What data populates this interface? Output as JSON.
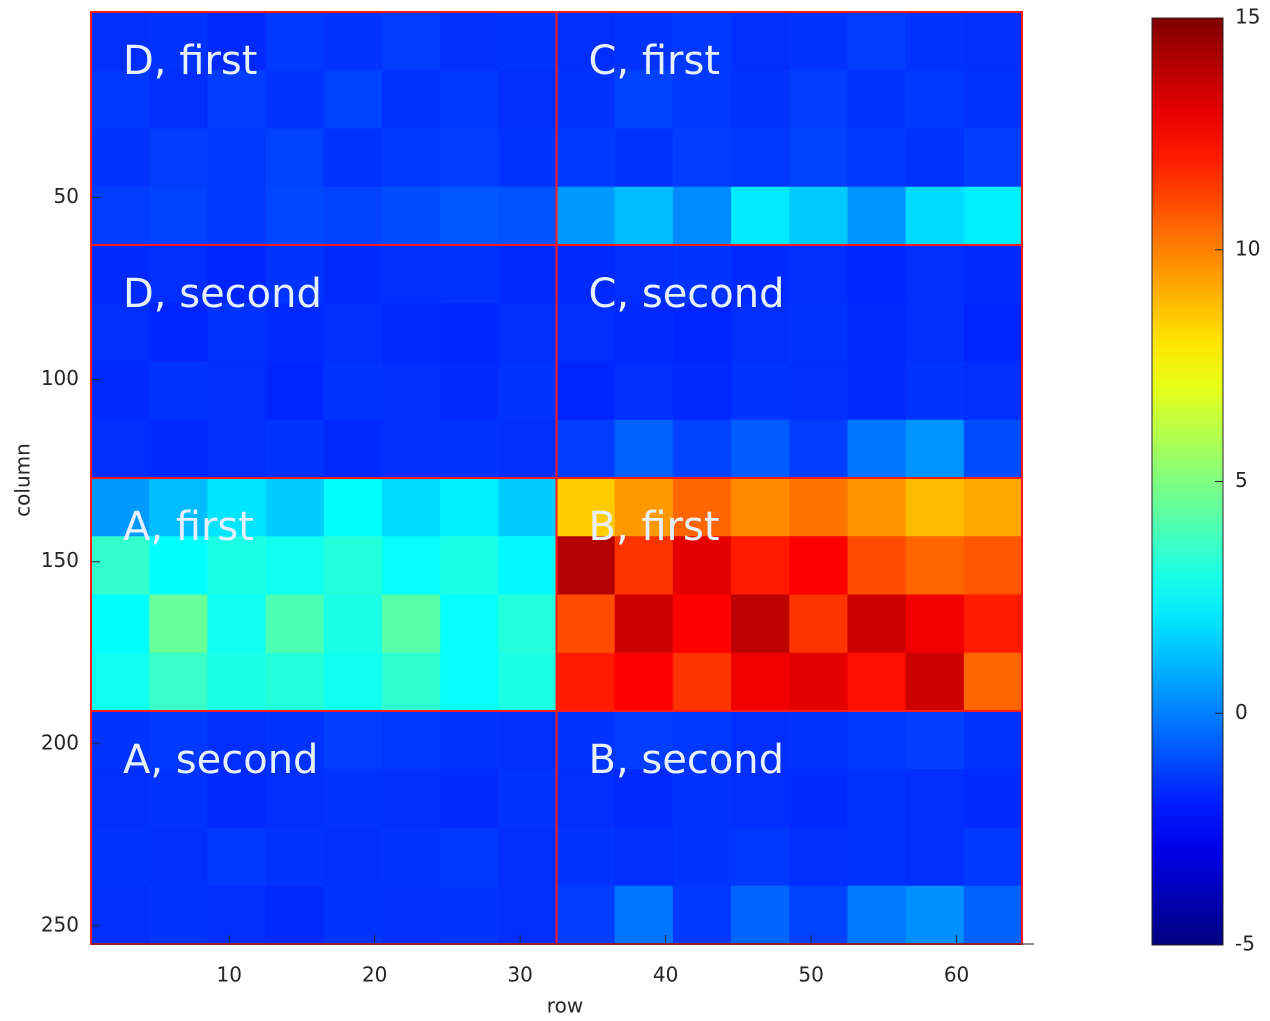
{
  "chart_data": {
    "type": "heatmap",
    "xlabel": "row",
    "ylabel": "column",
    "xlim": [
      0.5,
      64.5
    ],
    "ylim": [
      -1,
      255
    ],
    "xticks": [
      10,
      20,
      30,
      40,
      50,
      60
    ],
    "yticks": [
      50,
      100,
      150,
      200,
      250
    ],
    "y_reversed": true,
    "colormap": "jet",
    "clim": [
      -5,
      15
    ],
    "cticks": [
      -5,
      0,
      5,
      10,
      15
    ],
    "x": [
      2.5,
      6.5,
      10.5,
      14.5,
      18.5,
      22.5,
      26.5,
      30.5,
      34.5,
      38.5,
      42.5,
      46.5,
      50.5,
      54.5,
      58.5,
      62.5
    ],
    "y": [
      7,
      23,
      39,
      55,
      71,
      87,
      103,
      119,
      135,
      151,
      167,
      183,
      199,
      215,
      231,
      247
    ],
    "z": [
      [
        -1.6,
        -1.5,
        -1.7,
        -1.4,
        -1.5,
        -1.3,
        -1.6,
        -1.5,
        -1.6,
        -1.5,
        -1.4,
        -1.6,
        -1.5,
        -1.3,
        -1.5,
        -1.6
      ],
      [
        -1.4,
        -1.6,
        -1.3,
        -1.5,
        -1.2,
        -1.5,
        -1.4,
        -1.6,
        -1.5,
        -1.2,
        -1.4,
        -1.5,
        -1.3,
        -1.5,
        -1.4,
        -1.5
      ],
      [
        -1.5,
        -1.3,
        -1.4,
        -1.2,
        -1.5,
        -1.4,
        -1.3,
        -1.5,
        -1.4,
        -1.5,
        -1.3,
        -1.4,
        -1.2,
        -1.4,
        -1.5,
        -1.3
      ],
      [
        -1.3,
        -1.2,
        -1.4,
        -1.1,
        -1.2,
        -1.0,
        -0.8,
        -0.9,
        0.5,
        1.2,
        0.2,
        2.1,
        1.5,
        0.4,
        1.8,
        2.2
      ],
      [
        -1.7,
        -1.6,
        -1.8,
        -1.5,
        -1.7,
        -1.6,
        -1.5,
        -1.7,
        -1.7,
        -1.6,
        -1.5,
        -1.7,
        -1.6,
        -1.8,
        -1.6,
        -1.7
      ],
      [
        -1.6,
        -1.8,
        -1.5,
        -1.7,
        -1.6,
        -1.7,
        -1.8,
        -1.6,
        -1.6,
        -1.7,
        -1.8,
        -1.6,
        -1.5,
        -1.7,
        -1.6,
        -1.8
      ],
      [
        -1.7,
        -1.5,
        -1.6,
        -1.8,
        -1.5,
        -1.6,
        -1.7,
        -1.5,
        -1.8,
        -1.6,
        -1.7,
        -1.5,
        -1.6,
        -1.7,
        -1.5,
        -1.6
      ],
      [
        -1.6,
        -1.7,
        -1.6,
        -1.5,
        -1.7,
        -1.6,
        -1.5,
        -1.6,
        -1.3,
        -0.6,
        -1.2,
        -0.7,
        -1.3,
        -0.2,
        0.4,
        -1.0
      ],
      [
        0.5,
        1.2,
        2.0,
        1.5,
        2.5,
        1.8,
        2.2,
        1.5,
        8.5,
        9.5,
        10.5,
        9.8,
        10.2,
        9.6,
        8.8,
        9.2
      ],
      [
        3.5,
        2.5,
        3.0,
        2.8,
        3.2,
        2.6,
        3.0,
        2.4,
        14.0,
        11.5,
        13.0,
        12.0,
        12.5,
        11.0,
        10.5,
        10.8
      ],
      [
        2.5,
        4.5,
        2.8,
        4.0,
        3.0,
        4.2,
        2.6,
        3.2,
        11.0,
        13.5,
        12.5,
        13.8,
        11.5,
        13.5,
        12.8,
        12.0
      ],
      [
        2.8,
        3.6,
        3.0,
        3.2,
        2.8,
        3.4,
        2.6,
        3.0,
        12.0,
        12.5,
        11.5,
        12.8,
        13.0,
        12.2,
        13.5,
        10.5
      ],
      [
        -1.5,
        -1.4,
        -1.6,
        -1.5,
        -1.3,
        -1.4,
        -1.5,
        -1.6,
        -1.5,
        -1.3,
        -1.4,
        -1.6,
        -1.5,
        -1.4,
        -1.3,
        -1.5
      ],
      [
        -1.6,
        -1.5,
        -1.7,
        -1.6,
        -1.5,
        -1.6,
        -1.7,
        -1.5,
        -1.6,
        -1.7,
        -1.5,
        -1.6,
        -1.7,
        -1.5,
        -1.6,
        -1.7
      ],
      [
        -1.5,
        -1.6,
        -1.4,
        -1.5,
        -1.6,
        -1.5,
        -1.4,
        -1.6,
        -1.5,
        -1.6,
        -1.5,
        -1.4,
        -1.6,
        -1.5,
        -1.6,
        -1.4
      ],
      [
        -1.6,
        -1.5,
        -1.6,
        -1.7,
        -1.5,
        -1.6,
        -1.5,
        -1.6,
        -1.3,
        -0.2,
        -1.4,
        -0.5,
        -1.2,
        -0.1,
        0.3,
        -0.6
      ]
    ],
    "annotations": [
      "D, first",
      "C, first",
      "D, second",
      "C, second",
      "A, first",
      "B, first",
      "A, second",
      "B, second"
    ]
  }
}
